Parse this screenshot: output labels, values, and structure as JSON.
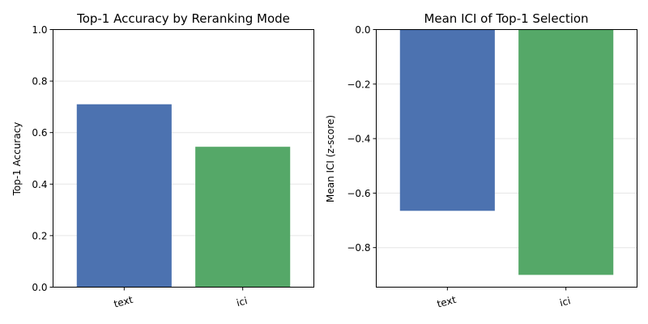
{
  "chart_data": [
    {
      "type": "bar",
      "title": "Top-1 Accuracy by Reranking Mode",
      "xlabel": "",
      "ylabel": "Top-1 Accuracy",
      "categories": [
        "text",
        "ici"
      ],
      "values": [
        0.71,
        0.545
      ],
      "colors": [
        "#4c72b0",
        "#55a868"
      ],
      "ylim": [
        0,
        1.0
      ],
      "yticks": [
        0.0,
        0.2,
        0.4,
        0.6,
        0.8,
        1.0
      ],
      "ytick_labels": [
        "0.0",
        "0.2",
        "0.4",
        "0.6",
        "0.8",
        "1.0"
      ],
      "grid": true,
      "legend": "none"
    },
    {
      "type": "bar",
      "title": "Mean ICI of Top-1 Selection",
      "xlabel": "",
      "ylabel": "Mean ICI (z-score)",
      "categories": [
        "text",
        "ici"
      ],
      "values": [
        -0.665,
        -0.9
      ],
      "colors": [
        "#4c72b0",
        "#55a868"
      ],
      "ylim": [
        -0.945,
        0.0
      ],
      "yticks": [
        0.0,
        -0.2,
        -0.4,
        -0.6,
        -0.8
      ],
      "ytick_labels": [
        "0.0",
        "−0.2",
        "−0.4",
        "−0.6",
        "−0.8"
      ],
      "grid": true,
      "legend": "none"
    }
  ]
}
